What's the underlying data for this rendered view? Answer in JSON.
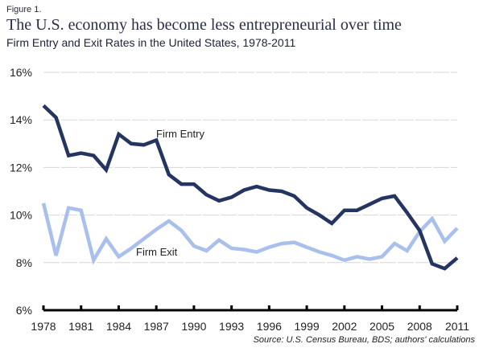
{
  "figure_label": "Figure 1.",
  "chart_data": {
    "type": "line",
    "title": "The U.S. economy has become less entrepreneurial over time",
    "subtitle": "Firm Entry and Exit Rates in the United States, 1978-2011",
    "xlabel": "",
    "ylabel": "",
    "ylim": [
      6,
      16
    ],
    "yticks": [
      6,
      8,
      10,
      12,
      14,
      16
    ],
    "ytick_labels": [
      "6%",
      "8%",
      "10%",
      "12%",
      "14%",
      "16%"
    ],
    "xticks": [
      1978,
      1981,
      1984,
      1987,
      1990,
      1993,
      1996,
      1999,
      2002,
      2005,
      2008,
      2011
    ],
    "xtick_labels": [
      "1978",
      "1981",
      "1984",
      "1987",
      "1990",
      "1993",
      "1996",
      "1999",
      "2002",
      "2005",
      "2008",
      "2011"
    ],
    "grid": true,
    "x": [
      1978,
      1979,
      1980,
      1981,
      1982,
      1983,
      1984,
      1985,
      1986,
      1987,
      1988,
      1989,
      1990,
      1991,
      1992,
      1993,
      1994,
      1995,
      1996,
      1997,
      1998,
      1999,
      2000,
      2001,
      2002,
      2003,
      2004,
      2005,
      2006,
      2007,
      2008,
      2009,
      2010,
      2011
    ],
    "series": [
      {
        "name": "Firm Entry",
        "color": "#253562",
        "values": [
          14.6,
          14.1,
          12.5,
          12.6,
          12.5,
          11.9,
          13.4,
          13.0,
          12.95,
          13.15,
          11.7,
          11.3,
          11.3,
          10.85,
          10.6,
          10.75,
          11.05,
          11.2,
          11.05,
          11.0,
          10.8,
          10.3,
          10.0,
          9.65,
          10.2,
          10.2,
          10.45,
          10.7,
          10.8,
          10.1,
          9.35,
          7.95,
          7.75,
          8.2
        ]
      },
      {
        "name": "Firm Exit",
        "color": "#a9c0ec",
        "values": [
          10.5,
          8.3,
          10.3,
          10.2,
          8.1,
          9.0,
          8.25,
          8.6,
          9.0,
          9.4,
          9.75,
          9.35,
          8.7,
          8.5,
          8.95,
          8.6,
          8.55,
          8.45,
          8.65,
          8.8,
          8.85,
          8.65,
          8.45,
          8.3,
          8.1,
          8.25,
          8.15,
          8.25,
          8.8,
          8.5,
          9.3,
          9.85,
          8.9,
          9.45
        ]
      }
    ],
    "annotations": [
      "Firm Entry",
      "Firm Exit"
    ],
    "source": "Source: U.S. Census Bureau, BDS; authors' calculations"
  }
}
